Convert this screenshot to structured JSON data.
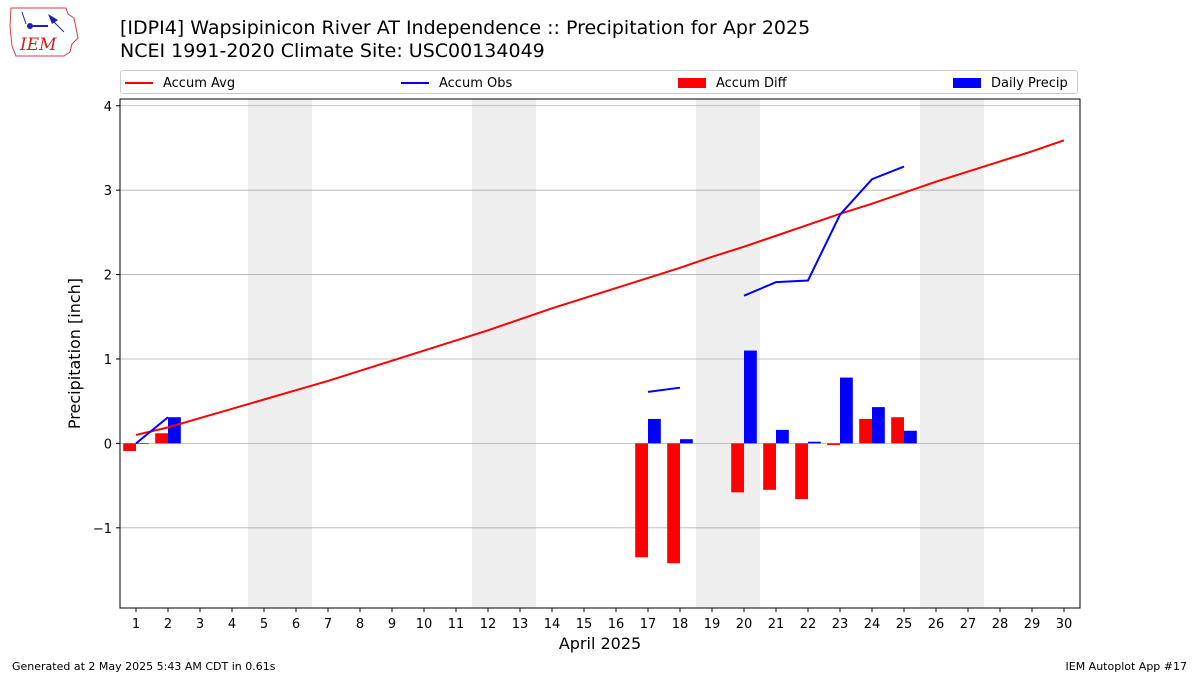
{
  "header": {
    "title_line1": "[IDPI4] Wapsipinicon River  AT Independence :: Precipitation for Apr 2025",
    "title_line2": "NCEI 1991-2020 Climate Site: USC00134049"
  },
  "logo": {
    "text": "IEM"
  },
  "footer": {
    "left": "Generated at 2 May 2025 5:43 AM CDT in 0.61s",
    "right": "IEM Autoplot App #17"
  },
  "colors": {
    "avg": "#ff0000",
    "obs": "#0000ff",
    "diff": "#ff0000",
    "daily": "#0000ff",
    "weekend": "#eeeeee",
    "grid": "#b0b0b0"
  },
  "chart_data": {
    "type": "bar",
    "xlabel": "April 2025",
    "ylabel": "Precipitation [inch]",
    "xlim": [
      0.5,
      30.5
    ],
    "ylim": [
      -1.95,
      4.08
    ],
    "yticks": [
      -1,
      0,
      1,
      2,
      3,
      4
    ],
    "ytick_labels": [
      "−1",
      "0",
      "1",
      "2",
      "3",
      "4"
    ],
    "x": [
      1,
      2,
      3,
      4,
      5,
      6,
      7,
      8,
      9,
      10,
      11,
      12,
      13,
      14,
      15,
      16,
      17,
      18,
      19,
      20,
      21,
      22,
      23,
      24,
      25,
      26,
      27,
      28,
      29,
      30
    ],
    "weekend_spans": [
      [
        4.5,
        6.5
      ],
      [
        11.5,
        13.5
      ],
      [
        18.5,
        20.5
      ],
      [
        25.5,
        27.5
      ]
    ],
    "grid": "horizontal",
    "legend_position": "top",
    "series": [
      {
        "name": "Accum Avg",
        "kind": "line",
        "values": [
          0.1,
          0.19,
          0.3,
          0.41,
          0.52,
          0.63,
          0.74,
          0.86,
          0.98,
          1.1,
          1.22,
          1.34,
          1.47,
          1.6,
          1.72,
          1.84,
          1.96,
          2.08,
          2.21,
          2.33,
          2.46,
          2.59,
          2.72,
          2.84,
          2.97,
          3.1,
          3.22,
          3.34,
          3.46,
          3.59
        ]
      },
      {
        "name": "Accum Obs",
        "kind": "line",
        "values": [
          0.0,
          0.31,
          null,
          null,
          null,
          null,
          null,
          null,
          null,
          null,
          null,
          null,
          null,
          null,
          null,
          null,
          0.61,
          0.66,
          null,
          1.75,
          1.91,
          1.93,
          2.71,
          3.13,
          3.28,
          null,
          null,
          null,
          null,
          null
        ]
      },
      {
        "name": "Accum Diff",
        "kind": "bar",
        "values": [
          -0.09,
          0.12,
          null,
          null,
          null,
          null,
          null,
          null,
          null,
          null,
          null,
          null,
          null,
          null,
          null,
          null,
          -1.35,
          -1.42,
          null,
          -0.58,
          -0.55,
          -0.66,
          -0.02,
          0.29,
          0.31,
          null,
          null,
          null,
          null,
          null
        ]
      },
      {
        "name": "Daily Precip",
        "kind": "bar",
        "values": [
          0.0,
          0.31,
          null,
          null,
          null,
          null,
          null,
          null,
          null,
          null,
          null,
          null,
          null,
          null,
          null,
          null,
          0.29,
          0.05,
          null,
          1.1,
          0.16,
          0.02,
          0.78,
          0.43,
          0.15,
          null,
          null,
          null,
          null,
          null
        ]
      }
    ]
  }
}
